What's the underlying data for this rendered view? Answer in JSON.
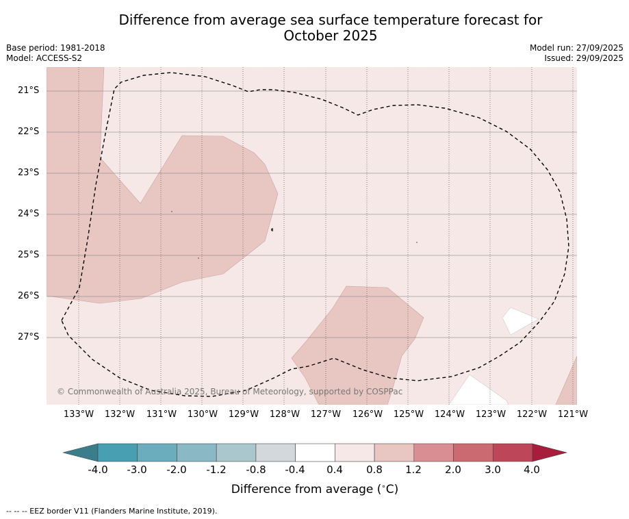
{
  "title_line1": "Difference from average sea surface temperature forecast for",
  "title_line2": "October 2025",
  "base_period": "Base period: 1981-2018",
  "model": "Model: ACCESS-S2",
  "model_run": "Model run: 27/09/2025",
  "issued": "Issued: 29/09/2025",
  "credit": "© Commonwealth of Australia 2025, Bureau of Meteorology, supported by COSPPac",
  "footnote": "--  --  -- EEZ border V11 (Flanders Marine Institute, 2019).",
  "lat_labels": [
    "21°S",
    "22°S",
    "23°S",
    "24°S",
    "25°S",
    "26°S",
    "27°S"
  ],
  "lon_labels": [
    "133°W",
    "132°W",
    "131°W",
    "130°W",
    "129°W",
    "128°W",
    "127°W",
    "126°W",
    "125°W",
    "124°W",
    "123°W",
    "122°W",
    "121°W"
  ],
  "colorbar": {
    "title": "Difference from average ($^\\circ$C)",
    "labels": [
      "-4.0",
      "-3.0",
      "-2.0",
      "-1.2",
      "-0.8",
      "-0.4",
      "0.4",
      "0.8",
      "1.2",
      "2.0",
      "3.0",
      "4.0"
    ],
    "colors": [
      "#479fb1",
      "#6badbc",
      "#8ab9c5",
      "#a9c7cc",
      "#d2d8db",
      "#ffffff",
      "#f5e8e7",
      "#e8c7c3",
      "#d98e94",
      "#cc6a72",
      "#bd4658"
    ],
    "under_color": "#3a7e8c",
    "over_color": "#a71d3b"
  },
  "colors": {
    "bg_light": "#f5e8e7",
    "bg_medium": "#e8c7c3",
    "bg_white": "#ffffff"
  }
}
